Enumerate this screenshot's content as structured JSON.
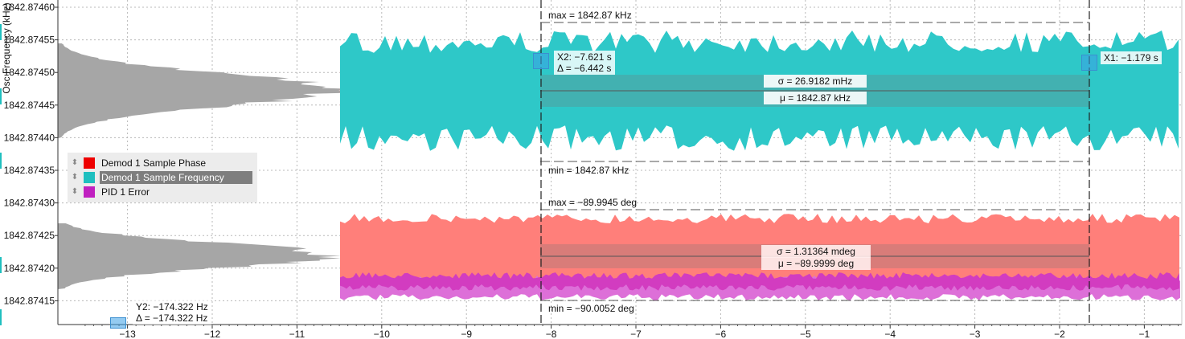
{
  "plot": {
    "y_axis_label": "Osc Frequency (kHz)",
    "y_ticks": [
      "1842.87460",
      "1842.87455",
      "1842.87450",
      "1842.87445",
      "1842.87440",
      "1842.87435",
      "1842.87430",
      "1842.87425",
      "1842.87420",
      "1842.87415"
    ],
    "x_ticks": [
      "-13",
      "-12",
      "-11",
      "-10",
      "-9",
      "-8",
      "-7",
      "-6",
      "-5",
      "-4",
      "-3",
      "-2",
      "-1"
    ],
    "colors": {
      "frequency": "#2ec8c8",
      "phase": "#ff7f7a",
      "pid": "#d23cc0",
      "histogram": "#a6a6a6",
      "grid": "#b8b8b8"
    }
  },
  "legend": {
    "items": [
      {
        "label": "Demod 1 Sample Phase",
        "color": "#ee0000",
        "selected": false
      },
      {
        "label": "Demod 1 Sample Frequency",
        "color": "#1fbfbf",
        "selected": true
      },
      {
        "label": "PID 1 Error",
        "color": "#c020c0",
        "selected": false
      }
    ]
  },
  "frequency_stats": {
    "max": "max = 1842.87 kHz",
    "min": "min = 1842.87 kHz",
    "sigma": "σ = 26.9182 mHz",
    "mu": "μ = 1842.87 kHz"
  },
  "phase_stats": {
    "max": "max = −89.9945 deg",
    "min": "min = −90.0052 deg",
    "sigma": "σ = 1.31364 mdeg",
    "mu": "μ = −89.9999 deg"
  },
  "cursors": {
    "x2": "X2: −7.621 s",
    "x2_delta": "Δ = −6.442 s",
    "x1": "X1: −1.179 s",
    "y2": "Y2: −174.322 Hz",
    "y2_delta": "Δ = −174.322 Hz"
  }
}
